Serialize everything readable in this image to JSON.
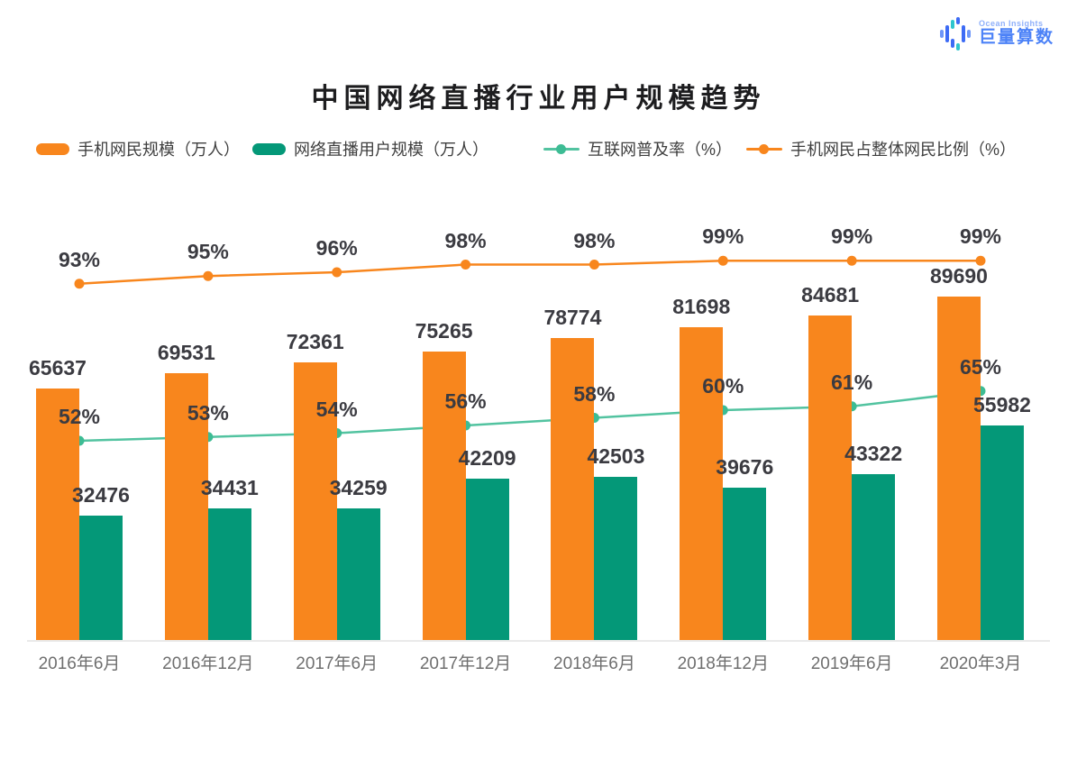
{
  "brand": {
    "tagline": "Ocean Insights",
    "name": "巨量算数",
    "color": "#4C82F7"
  },
  "title": "中国网络直播行业用户规模趋势",
  "legend": [
    {
      "label": "手机网民规模（万人）",
      "type": "bar",
      "color": "#F8861D"
    },
    {
      "label": "网络直播用户规模（万人）",
      "type": "bar",
      "color": "#049878"
    },
    {
      "label": "互联网普及率（%）",
      "type": "line",
      "color": "#52C3A0",
      "dot": "#3DBC94"
    },
    {
      "label": "手机网民占整体网民比例（%）",
      "type": "line",
      "color": "#F8861D",
      "dot": "#F8861D"
    }
  ],
  "chart_data": {
    "type": "bar",
    "subtype": "grouped bars with two percentage lines",
    "title": "中国网络直播行业用户规模趋势",
    "categories": [
      "2016年6月",
      "2016年12月",
      "2017年6月",
      "2017年12月",
      "2018年6月",
      "2018年12月",
      "2019年6月",
      "2020年3月"
    ],
    "series": [
      {
        "name": "手机网民规模（万人）",
        "type": "bar",
        "axis": "left",
        "color": "#F8861D",
        "values": [
          65637,
          69531,
          72361,
          75265,
          78774,
          81698,
          84681,
          89690
        ]
      },
      {
        "name": "网络直播用户规模（万人）",
        "type": "bar",
        "axis": "left",
        "color": "#049878",
        "values": [
          32476,
          34431,
          34259,
          42209,
          42503,
          39676,
          43322,
          55982
        ]
      },
      {
        "name": "互联网普及率（%）",
        "type": "line",
        "axis": "right",
        "color": "#52C3A0",
        "dot": "#3DBC94",
        "values": [
          52,
          53,
          54,
          56,
          58,
          60,
          61,
          65
        ],
        "labels": [
          "52%",
          "53%",
          "54%",
          "56%",
          "58%",
          "60%",
          "61%",
          "65%"
        ]
      },
      {
        "name": "手机网民占整体网民比例（%）",
        "type": "line",
        "axis": "right",
        "color": "#F8861D",
        "dot": "#F8861D",
        "values": [
          93,
          95,
          96,
          98,
          98,
          99,
          99,
          99
        ],
        "labels": [
          "93%",
          "95%",
          "96%",
          "98%",
          "98%",
          "99%",
          "99%",
          "99%"
        ]
      }
    ],
    "left_axis": {
      "max": 100000,
      "unit": "万人",
      "visible_ticks": false
    },
    "right_axis": {
      "max": 100,
      "unit": "%",
      "visible_ticks": false
    },
    "grid": false,
    "legend_position": "top",
    "value_labels_shown": true
  }
}
